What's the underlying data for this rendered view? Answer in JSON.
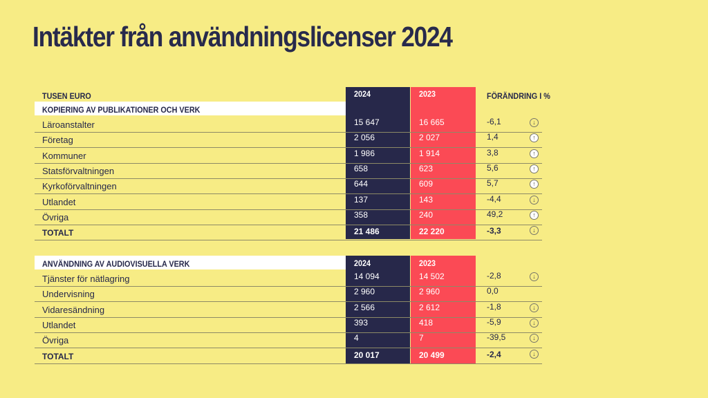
{
  "title": "Intäkter från användningslicenser 2024",
  "unit_label": "TUSEN EURO",
  "change_label": "FÖRÄNDRING I %",
  "colors": {
    "background": "#f7ec85",
    "col_2024": "#27284a",
    "col_2023": "#fb4a55",
    "text": "#26284a"
  },
  "section1": {
    "heading": "KOPIERING AV PUBLIKATIONER OCH VERK",
    "year_a": "2024",
    "year_b": "2023",
    "rows": [
      {
        "label": "Läroanstalter",
        "v2024": "15 647",
        "v2023": "16 665",
        "change": "-6,1",
        "icon": "arrow-down-icon",
        "dir": "down"
      },
      {
        "label": "Företag",
        "v2024": "2 056",
        "v2023": "2 027",
        "change": "1,4",
        "icon": "arrow-up-icon",
        "dir": "up"
      },
      {
        "label": "Kommuner",
        "v2024": "1 986",
        "v2023": "1 914",
        "change": "3,8",
        "icon": "arrow-up-icon",
        "dir": "up"
      },
      {
        "label": "Statsförvaltningen",
        "v2024": "658",
        "v2023": "623",
        "change": "5,6",
        "icon": "arrow-up-icon",
        "dir": "up"
      },
      {
        "label": "Kyrkoförvaltningen",
        "v2024": "644",
        "v2023": "609",
        "change": "5,7",
        "icon": "arrow-up-icon",
        "dir": "up"
      },
      {
        "label": "Utlandet",
        "v2024": "137",
        "v2023": "143",
        "change": "-4,4",
        "icon": "arrow-down-icon",
        "dir": "down"
      },
      {
        "label": "Övriga",
        "v2024": "358",
        "v2023": "240",
        "change": "49,2",
        "icon": "arrow-up-icon",
        "dir": "up"
      }
    ],
    "total": {
      "label": "TOTALT",
      "v2024": "21 486",
      "v2023": "22 220",
      "change": "-3,3",
      "icon": "arrow-down-icon",
      "dir": "down"
    }
  },
  "section2": {
    "heading": "ANVÄNDNING AV AUDIOVISUELLA VERK",
    "year_a": "2024",
    "year_b": "2023",
    "rows": [
      {
        "label": "Tjänster för nätlagring",
        "v2024": "14 094",
        "v2023": "14 502",
        "change": "-2,8",
        "icon": "arrow-down-icon",
        "dir": "down"
      },
      {
        "label": "Undervisning",
        "v2024": "2 960",
        "v2023": "2 960",
        "change": "0,0",
        "icon": "",
        "dir": "none"
      },
      {
        "label": "Vidaresändning",
        "v2024": "2 566",
        "v2023": "2 612",
        "change": "-1,8",
        "icon": "arrow-down-icon",
        "dir": "down"
      },
      {
        "label": "Utlandet",
        "v2024": "393",
        "v2023": "418",
        "change": "-5,9",
        "icon": "arrow-down-icon",
        "dir": "down"
      },
      {
        "label": "Övriga",
        "v2024": "4",
        "v2023": "7",
        "change": "-39,5",
        "icon": "arrow-down-icon",
        "dir": "down"
      }
    ],
    "total": {
      "label": "TOTALT",
      "v2024": "20 017",
      "v2023": "20 499",
      "change": "-2,4",
      "icon": "arrow-down-icon",
      "dir": "down"
    }
  }
}
